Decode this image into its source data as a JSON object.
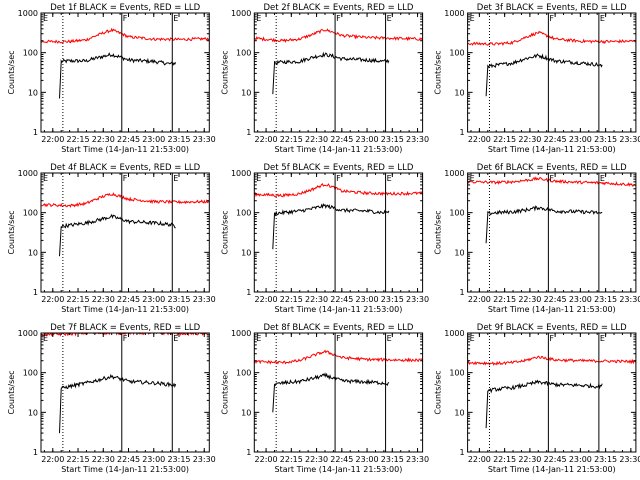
{
  "figure": {
    "xlabel": "Start Time (14-Jan-11 21:53:00)",
    "ylabel": "Counts/sec",
    "ytick_labels": [
      "1",
      "10",
      "100",
      "1000"
    ],
    "xtick_labels": [
      "22:00",
      "22:15",
      "22:30",
      "22:45",
      "23:00",
      "23:15",
      "23:30"
    ],
    "marker_labels": [
      "E",
      "F",
      "E"
    ],
    "colors": {
      "events": "#000000",
      "lld": "#ff0000",
      "axes": "#000000"
    }
  },
  "chart_data": [
    {
      "type": "line",
      "title": "Det 1f BLACK = Events, RED = LLD",
      "xlim": [
        "21:53",
        "23:33"
      ],
      "ylim": [
        1,
        1000
      ],
      "yscale": "log",
      "markers": {
        "dotted": "22:06",
        "solid": [
          "22:41",
          "23:11"
        ]
      },
      "series": [
        {
          "name": "Events",
          "color": "#000000",
          "x": [
            "22:04",
            "22:05",
            "22:10",
            "22:20",
            "22:27",
            "22:35",
            "22:45",
            "23:00",
            "23:10",
            "23:13"
          ],
          "values": [
            7,
            60,
            62,
            62,
            75,
            90,
            65,
            60,
            52,
            55
          ]
        },
        {
          "name": "LLD",
          "color": "#ff0000",
          "x": [
            "21:53",
            "22:10",
            "22:20",
            "22:27",
            "22:35",
            "22:45",
            "23:00",
            "23:15",
            "23:33"
          ],
          "values": [
            190,
            190,
            210,
            280,
            370,
            250,
            220,
            215,
            225
          ]
        }
      ]
    },
    {
      "type": "line",
      "title": "Det 2f BLACK = Events, RED = LLD",
      "xlim": [
        "21:53",
        "23:33"
      ],
      "ylim": [
        1,
        1000
      ],
      "yscale": "log",
      "markers": {
        "dotted": "22:06",
        "solid": [
          "22:41",
          "23:11"
        ]
      },
      "series": [
        {
          "name": "Events",
          "color": "#000000",
          "x": [
            "22:04",
            "22:05",
            "22:10",
            "22:20",
            "22:27",
            "22:35",
            "22:45",
            "23:00",
            "23:10",
            "23:13"
          ],
          "values": [
            9,
            55,
            58,
            60,
            75,
            90,
            70,
            65,
            60,
            62
          ]
        },
        {
          "name": "LLD",
          "color": "#ff0000",
          "x": [
            "21:53",
            "22:10",
            "22:20",
            "22:27",
            "22:35",
            "22:45",
            "23:00",
            "23:15",
            "23:33"
          ],
          "values": [
            230,
            200,
            220,
            280,
            380,
            270,
            240,
            230,
            220
          ]
        }
      ]
    },
    {
      "type": "line",
      "title": "Det 3f BLACK = Events, RED = LLD",
      "xlim": [
        "21:53",
        "23:33"
      ],
      "ylim": [
        1,
        1000
      ],
      "yscale": "log",
      "markers": {
        "dotted": "22:06",
        "solid": [
          "22:41",
          "23:11"
        ]
      },
      "series": [
        {
          "name": "Events",
          "color": "#000000",
          "x": [
            "22:04",
            "22:05",
            "22:10",
            "22:20",
            "22:27",
            "22:35",
            "22:45",
            "23:00",
            "23:10",
            "23:13"
          ],
          "values": [
            8,
            45,
            48,
            55,
            70,
            85,
            62,
            55,
            50,
            45
          ]
        },
        {
          "name": "LLD",
          "color": "#ff0000",
          "x": [
            "21:53",
            "22:10",
            "22:20",
            "22:27",
            "22:35",
            "22:45",
            "23:00",
            "23:15",
            "23:33"
          ],
          "values": [
            170,
            165,
            180,
            240,
            320,
            220,
            195,
            190,
            195
          ]
        }
      ]
    },
    {
      "type": "line",
      "title": "Det 4f BLACK = Events, RED = LLD",
      "xlim": [
        "21:53",
        "23:33"
      ],
      "ylim": [
        1,
        1000
      ],
      "yscale": "log",
      "markers": {
        "dotted": "22:06",
        "solid": [
          "22:41",
          "23:11"
        ]
      },
      "series": [
        {
          "name": "Events",
          "color": "#000000",
          "x": [
            "22:04",
            "22:05",
            "22:10",
            "22:20",
            "22:27",
            "22:35",
            "22:45",
            "23:00",
            "23:10",
            "23:13"
          ],
          "values": [
            8,
            45,
            48,
            55,
            65,
            80,
            60,
            55,
            50,
            45
          ]
        },
        {
          "name": "LLD",
          "color": "#ff0000",
          "x": [
            "21:53",
            "22:10",
            "22:20",
            "22:27",
            "22:35",
            "22:45",
            "23:00",
            "23:15",
            "23:33"
          ],
          "values": [
            160,
            150,
            170,
            230,
            300,
            220,
            190,
            185,
            190
          ]
        }
      ]
    },
    {
      "type": "line",
      "title": "Det 5f BLACK = Events, RED = LLD",
      "xlim": [
        "21:53",
        "23:33"
      ],
      "ylim": [
        1,
        1000
      ],
      "yscale": "log",
      "markers": {
        "dotted": "22:06",
        "solid": [
          "22:41",
          "23:11"
        ]
      },
      "series": [
        {
          "name": "Events",
          "color": "#000000",
          "x": [
            "22:04",
            "22:05",
            "22:10",
            "22:20",
            "22:27",
            "22:35",
            "22:45",
            "23:00",
            "23:10",
            "23:13"
          ],
          "values": [
            12,
            95,
            100,
            110,
            125,
            150,
            115,
            110,
            100,
            105
          ]
        },
        {
          "name": "LLD",
          "color": "#ff0000",
          "x": [
            "21:53",
            "22:10",
            "22:20",
            "22:27",
            "22:35",
            "22:45",
            "23:00",
            "23:15",
            "23:33"
          ],
          "values": [
            290,
            270,
            300,
            380,
            520,
            350,
            310,
            300,
            310
          ]
        }
      ]
    },
    {
      "type": "line",
      "title": "Det 6f BLACK = Events, RED = LLD",
      "xlim": [
        "21:53",
        "23:33"
      ],
      "ylim": [
        1,
        1000
      ],
      "yscale": "log",
      "markers": {
        "dotted": "22:06",
        "solid": [
          "22:41",
          "23:11"
        ]
      },
      "series": [
        {
          "name": "Events",
          "color": "#000000",
          "x": [
            "22:04",
            "22:05",
            "22:10",
            "22:20",
            "22:27",
            "22:35",
            "22:45",
            "23:00",
            "23:10",
            "23:13"
          ],
          "values": [
            17,
            95,
            100,
            105,
            115,
            135,
            110,
            105,
            100,
            95
          ]
        },
        {
          "name": "LLD",
          "color": "#ff0000",
          "x": [
            "21:53",
            "22:10",
            "22:20",
            "22:27",
            "22:35",
            "22:45",
            "23:00",
            "23:15",
            "23:33"
          ],
          "values": [
            600,
            580,
            600,
            650,
            720,
            620,
            580,
            560,
            500
          ]
        }
      ]
    },
    {
      "type": "line",
      "title": "Det 7f BLACK = Events, RED = LLD",
      "xlim": [
        "21:53",
        "23:33"
      ],
      "ylim": [
        1,
        1000
      ],
      "yscale": "log",
      "markers": {
        "dotted": "22:06",
        "solid": [
          "22:41",
          "23:11"
        ]
      },
      "series": [
        {
          "name": "Events",
          "color": "#000000",
          "x": [
            "22:04",
            "22:05",
            "22:10",
            "22:20",
            "22:27",
            "22:35",
            "22:45",
            "23:00",
            "23:10",
            "23:13"
          ],
          "values": [
            3,
            40,
            45,
            55,
            65,
            80,
            60,
            55,
            50,
            48
          ]
        },
        {
          "name": "LLD",
          "color": "#ff0000",
          "x": [
            "21:53",
            "22:10",
            "22:20",
            "22:27",
            "22:35",
            "22:45",
            "23:00",
            "23:15",
            "23:33"
          ],
          "values": [
            900,
            950,
            1000,
            1000,
            1000,
            1000,
            1000,
            980,
            950
          ]
        }
      ]
    },
    {
      "type": "line",
      "title": "Det 8f BLACK = Events, RED = LLD",
      "xlim": [
        "21:53",
        "23:33"
      ],
      "ylim": [
        1,
        1000
      ],
      "yscale": "log",
      "markers": {
        "dotted": "22:06",
        "solid": [
          "22:41",
          "23:11"
        ]
      },
      "series": [
        {
          "name": "Events",
          "color": "#000000",
          "x": [
            "22:04",
            "22:05",
            "22:10",
            "22:20",
            "22:27",
            "22:35",
            "22:45",
            "23:00",
            "23:10",
            "23:13"
          ],
          "values": [
            10,
            50,
            55,
            60,
            70,
            85,
            62,
            58,
            55,
            52
          ]
        },
        {
          "name": "LLD",
          "color": "#ff0000",
          "x": [
            "21:53",
            "22:10",
            "22:20",
            "22:27",
            "22:35",
            "22:45",
            "23:00",
            "23:15",
            "23:33"
          ],
          "values": [
            190,
            180,
            200,
            260,
            340,
            240,
            215,
            210,
            205
          ]
        }
      ]
    },
    {
      "type": "line",
      "title": "Det 9f BLACK = Events, RED = LLD",
      "xlim": [
        "21:53",
        "23:33"
      ],
      "ylim": [
        1,
        1000
      ],
      "yscale": "log",
      "markers": {
        "dotted": "22:06",
        "solid": [
          "22:41",
          "23:11"
        ]
      },
      "series": [
        {
          "name": "Events",
          "color": "#000000",
          "x": [
            "22:04",
            "22:05",
            "22:10",
            "22:20",
            "22:27",
            "22:35",
            "22:45",
            "23:00",
            "23:10",
            "23:13"
          ],
          "values": [
            4,
            35,
            38,
            42,
            48,
            58,
            50,
            48,
            45,
            48
          ]
        },
        {
          "name": "LLD",
          "color": "#ff0000",
          "x": [
            "21:53",
            "22:10",
            "22:20",
            "22:27",
            "22:35",
            "22:45",
            "23:00",
            "23:15",
            "23:33"
          ],
          "values": [
            180,
            170,
            180,
            200,
            250,
            210,
            200,
            195,
            190
          ]
        }
      ]
    }
  ]
}
